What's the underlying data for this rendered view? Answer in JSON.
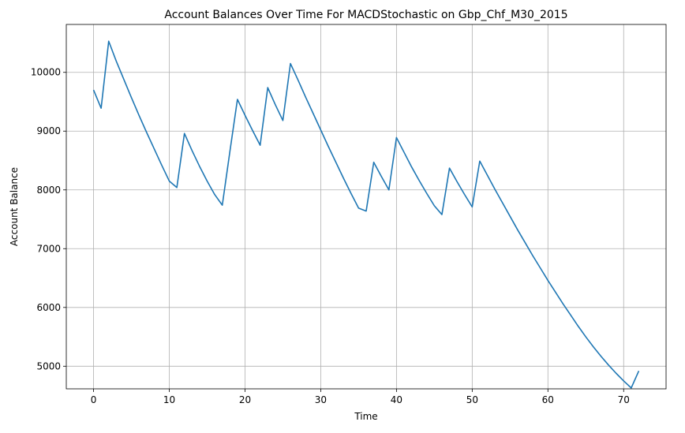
{
  "chart_data": {
    "type": "line",
    "title": "Account Balances Over Time For MACDStochastic on Gbp_Chf_M30_2015",
    "xlabel": "Time",
    "ylabel": "Account Balance",
    "xlim": [
      -3.6,
      75.6
    ],
    "ylim": [
      4615,
      10815
    ],
    "grid": true,
    "x_ticks": [
      0,
      10,
      20,
      30,
      40,
      50,
      60,
      70
    ],
    "y_ticks": [
      5000,
      6000,
      7000,
      8000,
      9000,
      10000
    ],
    "series": [
      {
        "color": "#1f77b4",
        "x": [
          0,
          1,
          2,
          3,
          4,
          5,
          6,
          7,
          8,
          9,
          10,
          11,
          12,
          13,
          14,
          15,
          16,
          17,
          18,
          19,
          20,
          21,
          22,
          23,
          24,
          25,
          26,
          27,
          28,
          29,
          30,
          31,
          32,
          33,
          34,
          35,
          36,
          37,
          38,
          39,
          40,
          41,
          42,
          43,
          44,
          45,
          46,
          47,
          48,
          49,
          50,
          51,
          52,
          53,
          54,
          55,
          56,
          57,
          58,
          59,
          60,
          61,
          62,
          63,
          64,
          65,
          66,
          67,
          68,
          69,
          70,
          71,
          72
        ],
        "values": [
          9700,
          9390,
          10530,
          10190,
          9880,
          9570,
          9270,
          8980,
          8700,
          8420,
          8150,
          8040,
          8960,
          8670,
          8400,
          8150,
          7920,
          7740,
          8650,
          9540,
          9270,
          9010,
          8760,
          9740,
          9450,
          9180,
          10150,
          9870,
          9580,
          9300,
          9020,
          8740,
          8470,
          8200,
          7940,
          7690,
          7640,
          8470,
          8230,
          8000,
          8890,
          8640,
          8390,
          8160,
          7940,
          7730,
          7580,
          8370,
          8140,
          7920,
          7710,
          8490,
          8250,
          8010,
          7780,
          7550,
          7320,
          7100,
          6880,
          6670,
          6460,
          6260,
          6060,
          5870,
          5680,
          5500,
          5330,
          5170,
          5020,
          4880,
          4750,
          4630,
          4920
        ]
      }
    ]
  }
}
